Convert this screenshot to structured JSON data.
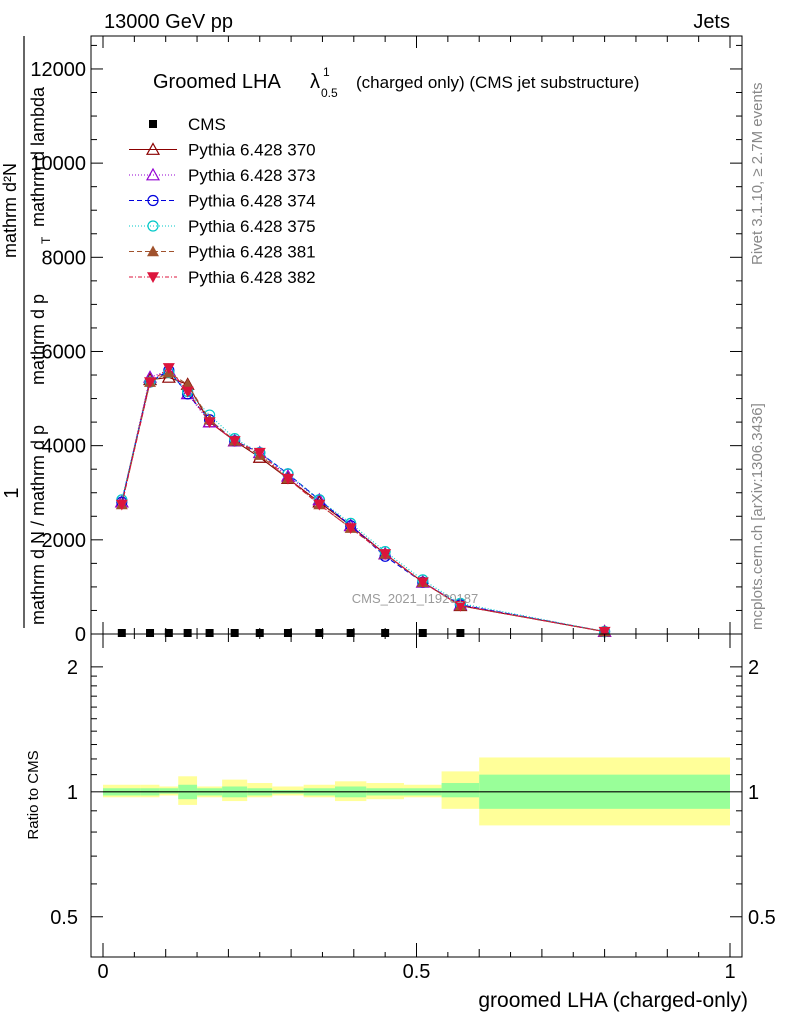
{
  "header": {
    "left": "13000 GeV pp",
    "right": "Jets"
  },
  "side_labels": {
    "rivet": "Rivet 3.1.10, ≥ 2.7M events",
    "mcplots": "mcplots.cern.ch [arXiv:1306.3436]"
  },
  "watermark": "CMS_2021_I1920187",
  "chart_data": [
    {
      "type": "line",
      "title": "Groomed LHA",
      "title_symbol": "λ",
      "title_sup": "1",
      "title_sub": "0.5",
      "title_suffix": "(charged only) (CMS jet substructure)",
      "ylabel_parts": [
        "1",
        "mathrm d N / mathrm d p",
        "mathrm d²N",
        "mathrm d p",
        "mathrm d lambda"
      ],
      "ylabel_sub": "T",
      "xlim": [
        0,
        1
      ],
      "ylim": [
        0,
        12700
      ],
      "yticks": [
        0,
        2000,
        4000,
        6000,
        8000,
        10000,
        12000
      ],
      "ytick_labels": [
        "0",
        "2000",
        "4000",
        "6000",
        "8000",
        "10000",
        "12000"
      ],
      "x": [
        0.03,
        0.075,
        0.105,
        0.135,
        0.17,
        0.21,
        0.25,
        0.295,
        0.345,
        0.395,
        0.45,
        0.51,
        0.57,
        0.8
      ],
      "series": [
        {
          "name": "CMS",
          "color": "#000000",
          "marker": "square",
          "values": [
            0,
            0,
            0,
            0,
            0,
            0,
            0,
            0,
            0,
            0,
            0,
            0,
            0,
            null
          ]
        },
        {
          "name": "Pythia 6.428 370",
          "color": "#8b0000",
          "marker": "triangle-open",
          "dash": "",
          "values": [
            2800,
            5400,
            5450,
            5300,
            4500,
            4100,
            3750,
            3300,
            2800,
            2300,
            1700,
            1100,
            600,
            50
          ]
        },
        {
          "name": "Pythia 6.428 373",
          "color": "#9400d3",
          "marker": "triangle-open",
          "dash": "1,2",
          "values": [
            2800,
            5450,
            5600,
            5100,
            4500,
            4100,
            3850,
            3350,
            2850,
            2300,
            1700,
            1100,
            620,
            50
          ]
        },
        {
          "name": "Pythia 6.428 374",
          "color": "#0000dd",
          "marker": "circle-open",
          "dash": "5,3",
          "values": [
            2800,
            5350,
            5600,
            5100,
            4550,
            4100,
            3850,
            3400,
            2850,
            2300,
            1650,
            1100,
            620,
            50
          ]
        },
        {
          "name": "Pythia 6.428 375",
          "color": "#00c8c8",
          "marker": "circle-open",
          "dash": "1,2",
          "values": [
            2850,
            5350,
            5550,
            5150,
            4650,
            4150,
            3850,
            3400,
            2850,
            2350,
            1750,
            1150,
            650,
            50
          ]
        },
        {
          "name": "Pythia 6.428 381",
          "color": "#a0522d",
          "marker": "triangle-filled",
          "dash": "5,3",
          "values": [
            2750,
            5350,
            5550,
            5300,
            4550,
            4100,
            3800,
            3300,
            2750,
            2250,
            1700,
            1100,
            600,
            50
          ]
        },
        {
          "name": "Pythia 6.428 382",
          "color": "#dc143c",
          "marker": "triangle-down-filled",
          "dash": "4,2,1,2",
          "values": [
            2750,
            5350,
            5650,
            5150,
            4500,
            4100,
            3850,
            3300,
            2750,
            2250,
            1700,
            1100,
            600,
            50
          ]
        }
      ]
    },
    {
      "type": "area",
      "ylabel": "Ratio to CMS",
      "xlabel": "groomed LHA (charged-only)",
      "xlim": [
        0,
        1
      ],
      "ylim": [
        0.4,
        2.4
      ],
      "log_y": true,
      "yticks": [
        0.5,
        1,
        2
      ],
      "ytick_labels": [
        "0.5",
        "1",
        "2"
      ],
      "xticks": [
        0,
        0.5,
        1
      ],
      "xtick_labels": [
        "0",
        "0.5",
        "1"
      ],
      "bin_edges": [
        0,
        0.06,
        0.09,
        0.12,
        0.15,
        0.19,
        0.23,
        0.27,
        0.32,
        0.37,
        0.42,
        0.48,
        0.54,
        0.6,
        1.0
      ],
      "band_inner": {
        "color": "#99ff99",
        "low": [
          0.98,
          0.98,
          0.99,
          0.96,
          0.98,
          0.97,
          0.98,
          0.99,
          0.98,
          0.97,
          0.98,
          0.98,
          0.97,
          0.91
        ],
        "high": [
          1.02,
          1.02,
          1.02,
          1.04,
          1.02,
          1.03,
          1.02,
          1.01,
          1.02,
          1.03,
          1.02,
          1.02,
          1.05,
          1.1
        ]
      },
      "band_outer": {
        "color": "#ffff99",
        "low": [
          0.97,
          0.97,
          0.98,
          0.93,
          0.97,
          0.95,
          0.97,
          0.98,
          0.97,
          0.95,
          0.96,
          0.97,
          0.91,
          0.83
        ]
      },
      "band_outer_high": [
        1.04,
        1.04,
        1.03,
        1.09,
        1.03,
        1.07,
        1.05,
        1.03,
        1.04,
        1.06,
        1.05,
        1.04,
        1.12,
        1.21
      ],
      "reference": 1
    }
  ]
}
